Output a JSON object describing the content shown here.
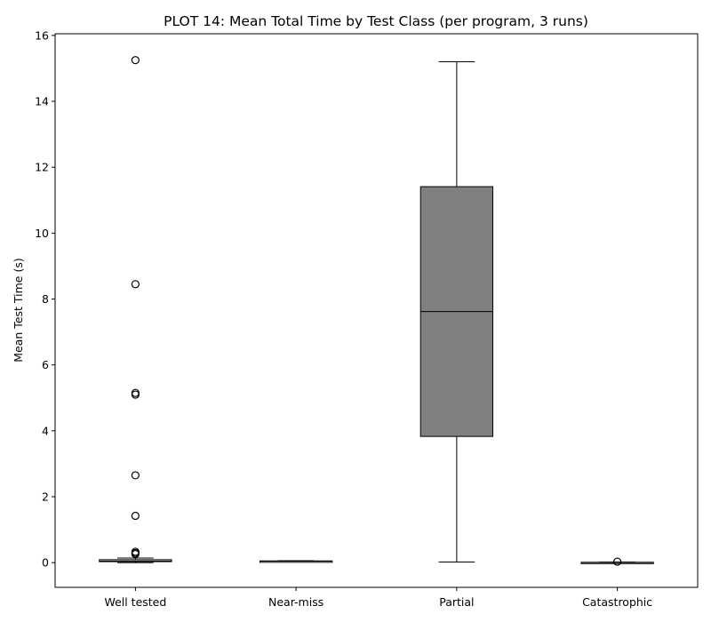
{
  "chart_data": {
    "type": "box",
    "title": "PLOT 14: Mean Total Time by Test Class (per program, 3 runs)",
    "xlabel": "",
    "ylabel": "Mean Test Time (s)",
    "ylim": [
      -0.75,
      16.05
    ],
    "yticks": [
      0,
      2,
      4,
      6,
      8,
      10,
      12,
      14,
      16
    ],
    "categories": [
      "Well tested",
      "Near-miss",
      "Partial",
      "Catastrophic"
    ],
    "boxes": [
      {
        "category": "Well tested",
        "whisker_low": 0.0,
        "q1": 0.03,
        "median": 0.05,
        "q3": 0.09,
        "whisker_high": 0.14,
        "outliers": [
          15.25,
          8.45,
          5.15,
          5.1,
          2.65,
          1.42,
          0.33,
          0.29,
          0.26
        ]
      },
      {
        "category": "Near-miss",
        "whisker_low": 0.04,
        "q1": 0.04,
        "median": 0.05,
        "q3": 0.05,
        "whisker_high": 0.06,
        "outliers": []
      },
      {
        "category": "Partial",
        "whisker_low": 0.02,
        "q1": 3.83,
        "median": 7.62,
        "q3": 11.41,
        "whisker_high": 15.2,
        "outliers": []
      },
      {
        "category": "Catastrophic",
        "whisker_low": 0.0,
        "q1": 0.0,
        "median": 0.01,
        "q3": 0.01,
        "whisker_high": 0.02,
        "outliers": [
          0.03
        ]
      }
    ],
    "colors": {
      "well_tested": "#ffffff",
      "near_miss": "#ffffff",
      "partial": "#808080",
      "catastrophic": "#ffffff"
    },
    "grid": false,
    "legend": "none"
  }
}
